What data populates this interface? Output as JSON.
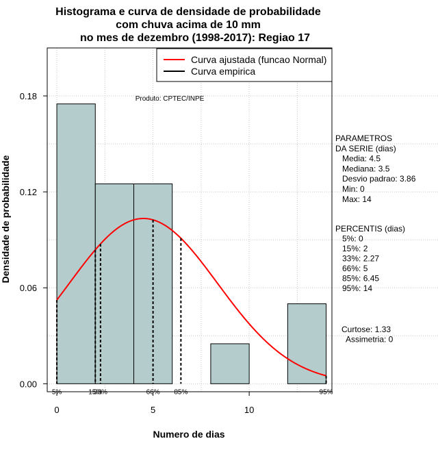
{
  "title_lines": [
    "Histograma e curva de densidade de probabilidade",
    "com chuva acima de 10 mm",
    "no mes de dezembro (1998-2017): Regiao 17"
  ],
  "producer": "Produto: CPTEC/INPE",
  "legend": {
    "fitted_label": "Curva ajustada (funcao Normal)",
    "empirical_label": "Curva empirica",
    "fitted_color": "#ff0000",
    "empirical_color": "#000000"
  },
  "parameters": {
    "lines": [
      "PARAMETROS",
      "DA SERIE (dias)",
      "   Media: 4.5",
      "   Mediana: 3.5",
      "   Desvio padrao: 3.86",
      "   Min: 0",
      "   Max: 14"
    ]
  },
  "percentiles_block": {
    "lines": [
      "PERCENTIS (dias)",
      "   5%: 0",
      "   15%: 2",
      "   33%: 2.27",
      "   66%: 5",
      "   85%: 6.45",
      "   95%: 14"
    ]
  },
  "shape_stats": {
    "lines": [
      "Curtose: 1.33",
      "  Assimetria: 0"
    ]
  },
  "chart_data": {
    "type": "bar",
    "subtype": "histogram",
    "title": "Histograma e curva de densidade de probabilidade com chuva acima de 10 mm no mes de dezembro (1998-2017): Regiao 17",
    "xlabel": "Numero de dias",
    "ylabel": "Densidade de probabilidade",
    "xlim": [
      -0.5,
      14.3
    ],
    "ylim": [
      -0.005,
      0.21
    ],
    "x_ticks": [
      0,
      5,
      10
    ],
    "y_ticks": [
      0.0,
      0.06,
      0.12,
      0.18
    ],
    "y_tick_labels": [
      "0.00",
      "0.06",
      "0.12",
      "0.18"
    ],
    "grid": true,
    "legend_position": "top-right",
    "bar_color": "#b4cccb",
    "bins": [
      {
        "start": 0,
        "end": 2,
        "density": 0.175
      },
      {
        "start": 2,
        "end": 4,
        "density": 0.125
      },
      {
        "start": 4,
        "end": 6,
        "density": 0.125
      },
      {
        "start": 6,
        "end": 8,
        "density": 0.0
      },
      {
        "start": 8,
        "end": 10,
        "density": 0.025
      },
      {
        "start": 10,
        "end": 12,
        "density": 0.0
      },
      {
        "start": 12,
        "end": 14,
        "density": 0.05
      }
    ],
    "normal_fit": {
      "mean": 4.5,
      "sd": 3.86,
      "x_from": 0,
      "x_to": 14
    },
    "percentile_lines": [
      {
        "label": "5%",
        "value": 0
      },
      {
        "label": "15%",
        "value": 2
      },
      {
        "label": "33%",
        "value": 2.27
      },
      {
        "label": "66%",
        "value": 5
      },
      {
        "label": "85%",
        "value": 6.45
      },
      {
        "label": "95%",
        "value": 14
      }
    ]
  }
}
